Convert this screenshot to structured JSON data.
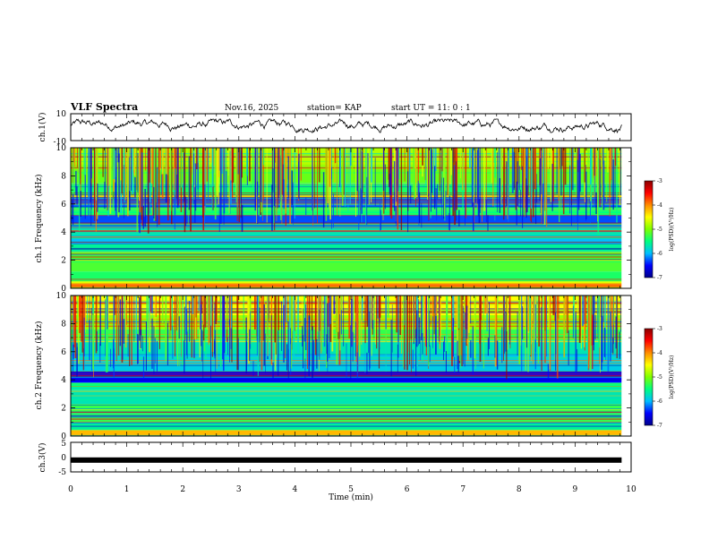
{
  "header": {
    "title": "VLF Spectra",
    "date": "Nov.16, 2025",
    "station": "station= KAP",
    "start": "start  UT =   11: 0  : 1"
  },
  "colorbar": {
    "label": "log(PSD)(V²/Hz)",
    "ticks": [
      "-3",
      "-4",
      "-5",
      "-6",
      "-7"
    ],
    "colors": [
      "#8b0000",
      "#ff0000",
      "#ff8c00",
      "#ffff00",
      "#7fff00",
      "#00ff7f",
      "#00bfff",
      "#0000ff",
      "#00008b"
    ]
  },
  "chart_data": [
    {
      "type": "line",
      "name": "ch1-waveform",
      "ylabel": "ch.1(V)",
      "ylim": [
        -10,
        10
      ],
      "ytick_labels": [
        "10",
        "-10"
      ],
      "xlim": [
        0,
        10
      ],
      "x_end": 9.83,
      "description_level": "noisy waveform mostly between -3 and 5 V"
    },
    {
      "type": "heatmap",
      "name": "ch1-spectrogram",
      "ylabel": "ch.1 Frequency (kHz)",
      "ylim": [
        0,
        10
      ],
      "ytick_labels": [
        "10",
        "8",
        "6",
        "4",
        "2",
        "0"
      ],
      "xlim": [
        0,
        10
      ],
      "x_end": 9.83,
      "zlim": [
        -7,
        -3
      ],
      "band_levels": [
        {
          "f0": 0.0,
          "f1": 0.3,
          "level": -3.9
        },
        {
          "f0": 0.3,
          "f1": 0.5,
          "level": -4.6
        },
        {
          "f0": 0.5,
          "f1": 1.2,
          "level": -5.4
        },
        {
          "f0": 1.2,
          "f1": 2.6,
          "level": -5.2
        },
        {
          "f0": 2.6,
          "f1": 3.2,
          "level": -5.6
        },
        {
          "f0": 3.2,
          "f1": 3.6,
          "level": -6.0
        },
        {
          "f0": 3.6,
          "f1": 4.3,
          "level": -5.7
        },
        {
          "f0": 4.3,
          "f1": 5.2,
          "level": -6.3
        },
        {
          "f0": 5.2,
          "f1": 5.8,
          "level": -5.5
        },
        {
          "f0": 5.8,
          "f1": 6.4,
          "level": -6.2
        },
        {
          "f0": 6.4,
          "f1": 6.6,
          "level": -4.3
        },
        {
          "f0": 6.6,
          "f1": 7.5,
          "level": -5.4
        },
        {
          "f0": 7.5,
          "f1": 8.6,
          "level": -5.1
        },
        {
          "f0": 8.6,
          "f1": 10.0,
          "level": -4.8
        }
      ]
    },
    {
      "type": "heatmap",
      "name": "ch2-spectrogram",
      "ylabel": "ch.2 Frequency (kHz)",
      "ylim": [
        0,
        10
      ],
      "ytick_labels": [
        "10",
        "8",
        "6",
        "4",
        "2",
        "0"
      ],
      "xlim": [
        0,
        10
      ],
      "x_end": 9.83,
      "zlim": [
        -7,
        -3
      ],
      "band_levels": [
        {
          "f0": 0.0,
          "f1": 0.4,
          "level": -4.2
        },
        {
          "f0": 0.4,
          "f1": 1.0,
          "level": -5.6
        },
        {
          "f0": 1.0,
          "f1": 2.2,
          "level": -5.3
        },
        {
          "f0": 2.2,
          "f1": 3.3,
          "level": -5.7
        },
        {
          "f0": 3.3,
          "f1": 3.8,
          "level": -5.5
        },
        {
          "f0": 3.8,
          "f1": 4.6,
          "level": -6.5
        },
        {
          "f0": 4.6,
          "f1": 5.8,
          "level": -5.9
        },
        {
          "f0": 5.8,
          "f1": 6.8,
          "level": -5.7
        },
        {
          "f0": 6.8,
          "f1": 7.6,
          "level": -5.3
        },
        {
          "f0": 7.6,
          "f1": 8.6,
          "level": -4.9
        },
        {
          "f0": 8.6,
          "f1": 10.0,
          "level": -4.5
        }
      ]
    },
    {
      "type": "line",
      "name": "ch3-waveform",
      "ylabel": "ch.3(V)",
      "ylim": [
        -5,
        5
      ],
      "ytick_labels": [
        "5",
        "0",
        "-5"
      ],
      "xlim": [
        0,
        10
      ],
      "x_end": 9.83,
      "constant_value": -1.0
    }
  ],
  "xaxis": {
    "label": "Time  (min)",
    "ticks": [
      "0",
      "1",
      "2",
      "3",
      "4",
      "5",
      "6",
      "7",
      "8",
      "9",
      "10"
    ]
  }
}
